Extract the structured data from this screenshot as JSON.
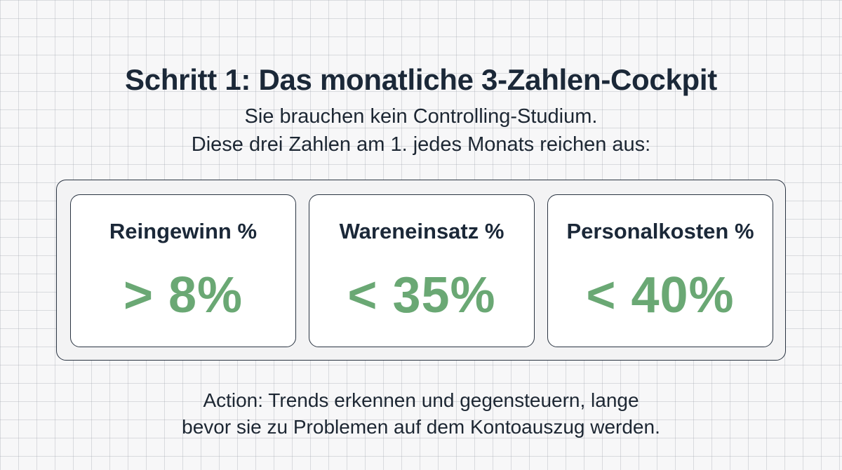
{
  "title": "Schritt 1: Das monatliche 3-Zahlen-Cockpit",
  "subtitle": {
    "line1": "Sie brauchen kein Controlling-Studium.",
    "line2": "Diese drei Zahlen am 1. jedes Monats reichen aus:"
  },
  "metrics": [
    {
      "label": "Reingewinn %",
      "value": "> 8%"
    },
    {
      "label": "Wareneinsatz %",
      "value": "< 35%"
    },
    {
      "label": "Personalkosten %",
      "value": "< 40%"
    }
  ],
  "action": {
    "line1": "Action: Trends erkennen und gegensteuern, lange",
    "line2": "bevor sie zu Problemen auf dem Kontoauszug werden."
  },
  "colors": {
    "accent_green": "#6aa874",
    "text_dark": "#1b2838",
    "border": "#2a3442"
  }
}
